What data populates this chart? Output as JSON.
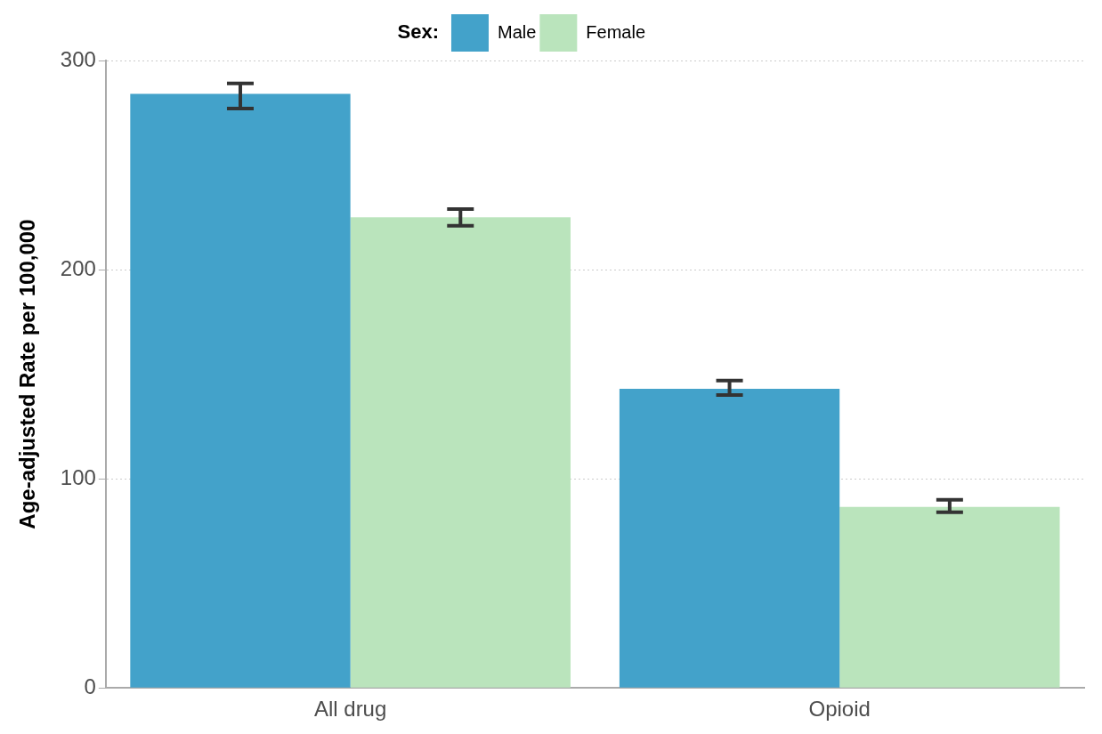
{
  "chart_data": {
    "type": "bar",
    "ylabel": "Age-adjusted Rate per 100,000",
    "legend_title": "Sex:",
    "legend": "top",
    "grid": "y",
    "categories": [
      "All drug",
      "Opioid"
    ],
    "series": [
      {
        "name": "Male",
        "color": "#43a2ca",
        "values": [
          284,
          143
        ],
        "errors": [
          [
            277,
            289
          ],
          [
            140,
            147
          ]
        ]
      },
      {
        "name": "Female",
        "color": "#bae4bc",
        "values": [
          225,
          86.5
        ],
        "errors": [
          [
            221,
            229
          ],
          [
            84,
            90
          ]
        ]
      }
    ],
    "ylim": [
      0,
      300
    ],
    "yticks": [
      0,
      100,
      200,
      300
    ]
  }
}
